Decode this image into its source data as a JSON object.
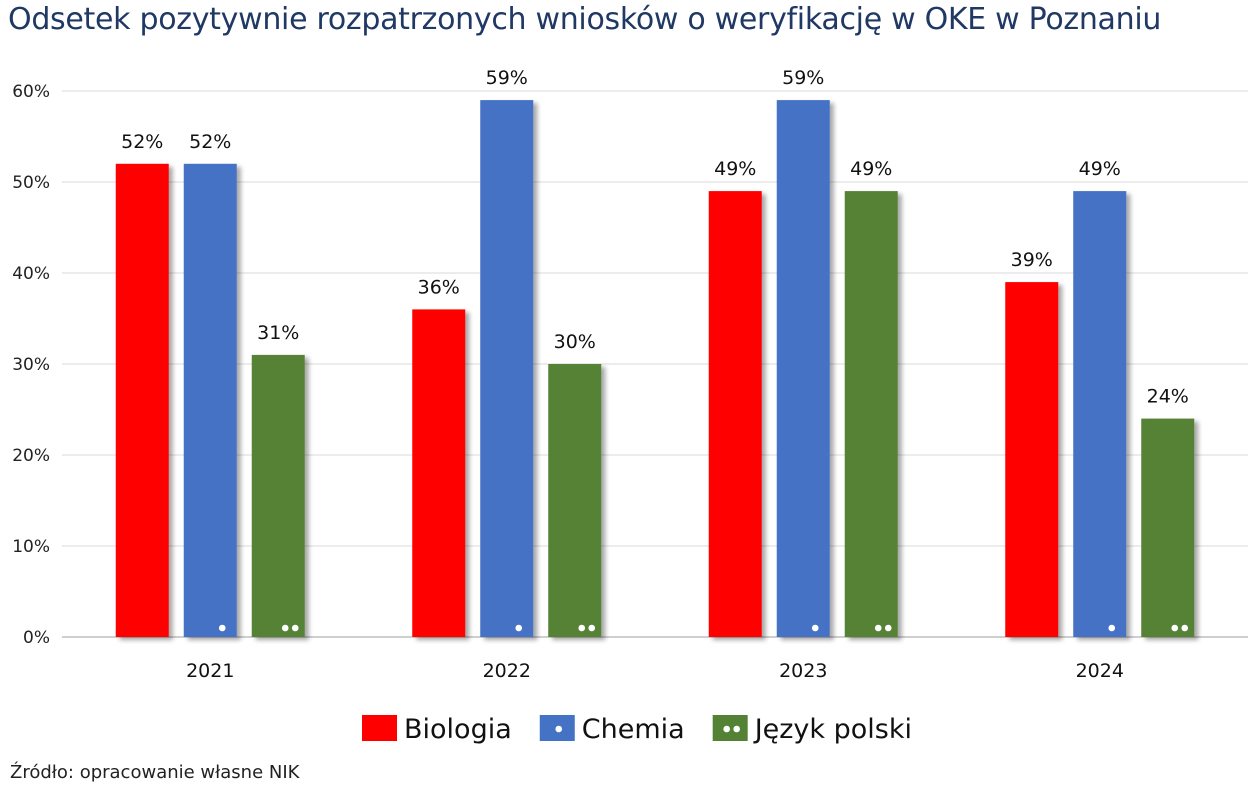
{
  "title": "Odsetek pozytywnie rozpatrzonych wniosków o weryfikację w OKE w Poznaniu",
  "source": "Źródło: opracowanie własne NIK",
  "chart_data": {
    "type": "bar",
    "categories": [
      "2021",
      "2022",
      "2023",
      "2024"
    ],
    "series": [
      {
        "name": "Biologia",
        "color": "#ff0000",
        "values": [
          52,
          36,
          49,
          39
        ],
        "value_labels": [
          "52%",
          "36%",
          "49%",
          "39%"
        ],
        "dot_marks": 0
      },
      {
        "name": "Chemia",
        "color": "#4472c4",
        "values": [
          52,
          59,
          59,
          49
        ],
        "value_labels": [
          "52%",
          "59%",
          "59%",
          "49%"
        ],
        "dot_marks": 1
      },
      {
        "name": "Język polski",
        "color": "#548235",
        "values": [
          31,
          30,
          49,
          24
        ],
        "value_labels": [
          "31%",
          "30%",
          "49%",
          "24%"
        ],
        "dot_marks": 2
      }
    ],
    "ylim": [
      0,
      60
    ],
    "yticks": [
      0,
      10,
      20,
      30,
      40,
      50,
      60
    ],
    "ytick_labels": [
      "0%",
      "10%",
      "20%",
      "30%",
      "40%",
      "50%",
      "60%"
    ],
    "xlabel": "",
    "ylabel": "",
    "grid": true,
    "legend_position": "bottom"
  }
}
